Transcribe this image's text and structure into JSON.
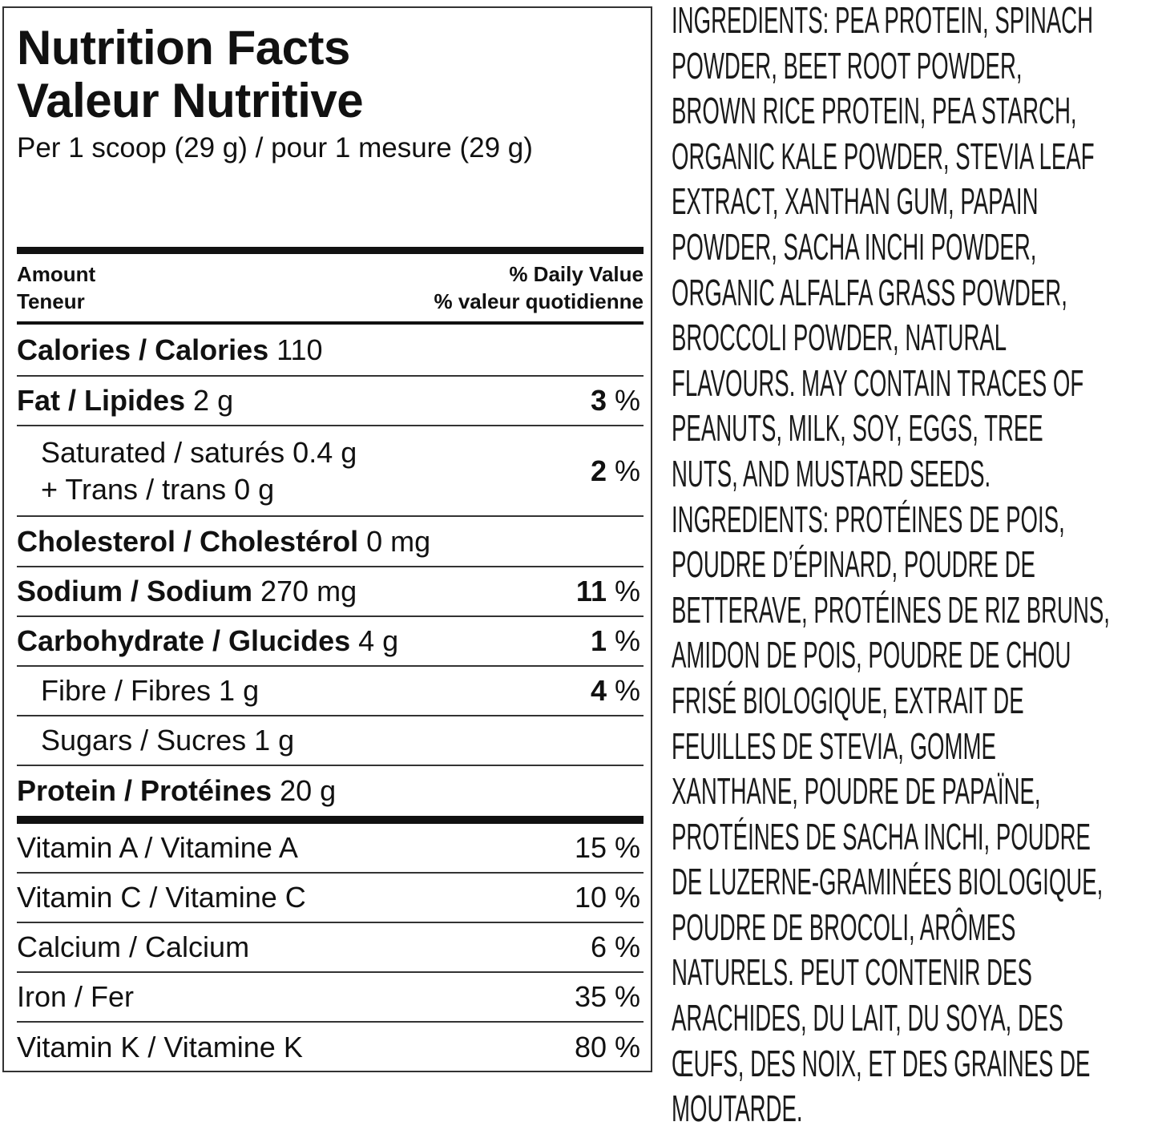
{
  "label": {
    "title_en": "Nutrition Facts",
    "title_fr": "Valeur Nutritive",
    "serving": "Per 1 scoop (29 g) / pour 1 mesure (29 g)",
    "header": {
      "amount_en": "Amount",
      "amount_fr": "Teneur",
      "dv_en": "% Daily Value",
      "dv_fr": "% valeur quotidienne"
    },
    "rows": [
      {
        "name": "Calories / Calories",
        "amount": "110",
        "dv": ""
      },
      {
        "name": "Fat / Lipides",
        "amount": "2 g",
        "dv_num": "3",
        "dv_unit": "%"
      },
      {
        "line1": "Saturated / saturés 0.4 g",
        "line2": "+ Trans / trans 0 g",
        "dv_num": "2",
        "dv_unit": "%"
      },
      {
        "name": "Cholesterol / Cholestérol",
        "amount": "0 mg"
      },
      {
        "name": "Sodium / Sodium",
        "amount": "270 mg",
        "dv_num": "11",
        "dv_unit": "%"
      },
      {
        "name": "Carbohydrate / Glucides",
        "amount": "4 g",
        "dv_num": "1",
        "dv_unit": "%"
      },
      {
        "name": "Fibre / Fibres 1 g",
        "dv_num": "4",
        "dv_unit": "%"
      },
      {
        "name": "Sugars / Sucres 1 g"
      },
      {
        "name": "Protein / Protéines",
        "amount": "20 g"
      }
    ],
    "vitamins": [
      {
        "name": "Vitamin A / Vitamine A",
        "dv": "15 %"
      },
      {
        "name": "Vitamin C / Vitamine C",
        "dv": "10 %"
      },
      {
        "name": "Calcium / Calcium",
        "dv": "6 %"
      },
      {
        "name": "Iron / Fer",
        "dv": "35 %"
      },
      {
        "name": "Vitamin K / Vitamine K",
        "dv": "80 %"
      }
    ]
  },
  "ingredients_lines": [
    "INGREDIENTS: PEA PROTEIN, SPINACH",
    "POWDER, BEET ROOT POWDER,",
    "BROWN RICE PROTEIN, PEA STARCH,",
    "ORGANIC KALE POWDER, STEVIA LEAF",
    "EXTRACT, XANTHAN GUM, PAPAIN",
    "POWDER, SACHA INCHI POWDER,",
    "ORGANIC ALFALFA GRASS POWDER,",
    "BROCCOLI POWDER, NATURAL",
    "FLAVOURS. MAY CONTAIN TRACES OF",
    "PEANUTS, MILK, SOY, EGGS, TREE",
    "NUTS, AND MUSTARD SEEDS.",
    "INGREDIENTS: PROTÉINES DE POIS,",
    "POUDRE D’ÉPINARD, POUDRE DE",
    "BETTERAVE, PROTÉINES DE RIZ BRUNS,",
    "AMIDON DE POIS, POUDRE DE CHOU",
    "FRISÉ BIOLOGIQUE, EXTRAIT DE",
    "FEUILLES DE STEVIA, GOMME",
    "XANTHANE, POUDRE DE PAPAÏNE,",
    "PROTÉINES DE SACHA INCHI, POUDRE",
    "DE LUZERNE-GRAMINÉES BIOLOGIQUE,",
    "POUDRE DE BROCOLI, ARÔMES",
    "NATURELS. PEUT CONTENIR DES",
    "ARACHIDES, DU LAIT, DU SOYA, DES",
    "ŒUFS, DES NOIX, ET DES GRAINES DE",
    "MOUTARDE."
  ]
}
